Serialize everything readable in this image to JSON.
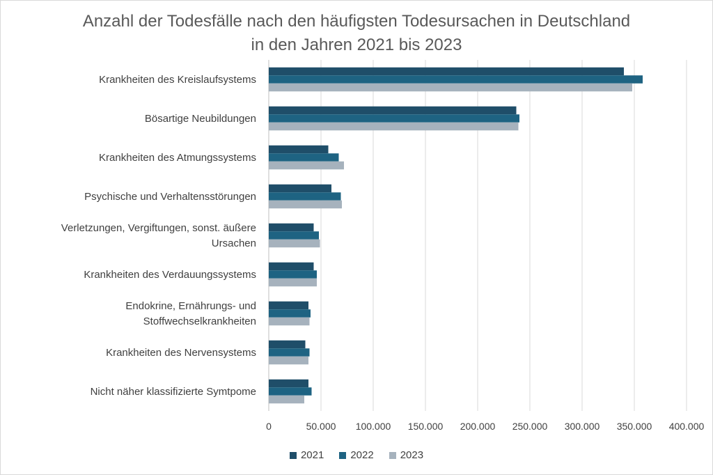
{
  "chart_data": {
    "type": "bar",
    "orientation": "horizontal",
    "title_lines": [
      "Anzahl der Todesfälle nach den häufigsten Todesursachen in Deutschland",
      "in den Jahren 2021 bis 2023"
    ],
    "categories": [
      [
        "Krankheiten des Kreislaufsystems"
      ],
      [
        "Bösartige Neubildungen"
      ],
      [
        "Krankheiten des Atmungssystems"
      ],
      [
        "Psychische und Verhaltensstörungen"
      ],
      [
        "Verletzungen, Vergiftungen, sonst. äußere",
        "Ursachen"
      ],
      [
        "Krankheiten des Verdauungssystems"
      ],
      [
        "Endokrine, Ernährungs- und",
        "Stoffwechselkrankheiten"
      ],
      [
        "Krankheiten des Nervensystems"
      ],
      [
        "Nicht näher klassifizierte Symtpome"
      ]
    ],
    "series": [
      {
        "name": "2021",
        "color": "#1f4e69",
        "values": [
          340000,
          237000,
          57000,
          60000,
          43000,
          43000,
          38000,
          35000,
          38000
        ]
      },
      {
        "name": "2022",
        "color": "#1e6382",
        "values": [
          358000,
          240000,
          67000,
          69000,
          48000,
          46000,
          40000,
          39000,
          41000
        ]
      },
      {
        "name": "2023",
        "color": "#a6b2bd",
        "values": [
          348000,
          239000,
          72000,
          70000,
          49000,
          46000,
          39000,
          38000,
          34000
        ]
      }
    ],
    "xlim": [
      0,
      400000
    ],
    "ticks": [
      "0",
      "50.000",
      "100.000",
      "150.000",
      "200.000",
      "250.000",
      "300.000",
      "350.000",
      "400.000"
    ],
    "tick_values": [
      0,
      50000,
      100000,
      150000,
      200000,
      250000,
      300000,
      350000,
      400000
    ],
    "gridlines": true,
    "legend": "bottom"
  }
}
